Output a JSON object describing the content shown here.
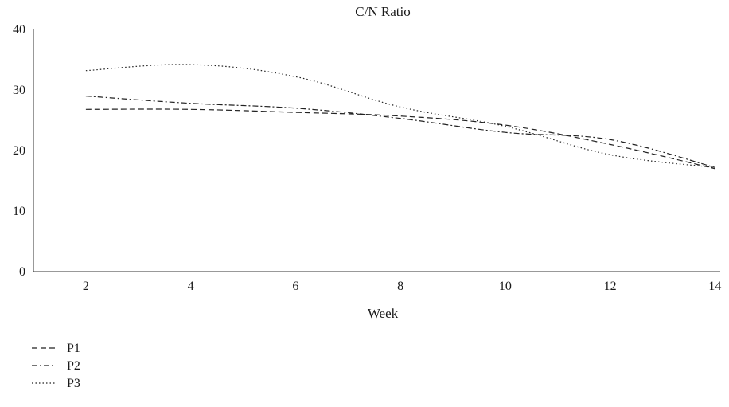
{
  "chart_data": {
    "type": "line",
    "title": "C/N Ratio",
    "xlabel": "Week",
    "ylabel": "",
    "x": [
      2,
      4,
      6,
      8,
      10,
      12,
      14
    ],
    "xlim": [
      1,
      14.1
    ],
    "ylim": [
      0,
      40
    ],
    "yticks": [
      0,
      10,
      20,
      30,
      40
    ],
    "xticks": [
      2,
      4,
      6,
      8,
      10,
      12,
      14
    ],
    "grid": false,
    "legend": "bottom-left",
    "series": [
      {
        "name": "P1",
        "values": [
          26.8,
          26.8,
          26.3,
          25.7,
          24.2,
          21.0,
          17.0
        ],
        "dash": "dashed"
      },
      {
        "name": "P2",
        "values": [
          29.0,
          27.8,
          27.0,
          25.3,
          23.0,
          21.8,
          17.2
        ],
        "dash": "dash-dot"
      },
      {
        "name": "P3",
        "values": [
          33.2,
          34.2,
          32.2,
          27.2,
          24.0,
          19.3,
          17.2
        ],
        "dash": "dotted"
      }
    ]
  }
}
